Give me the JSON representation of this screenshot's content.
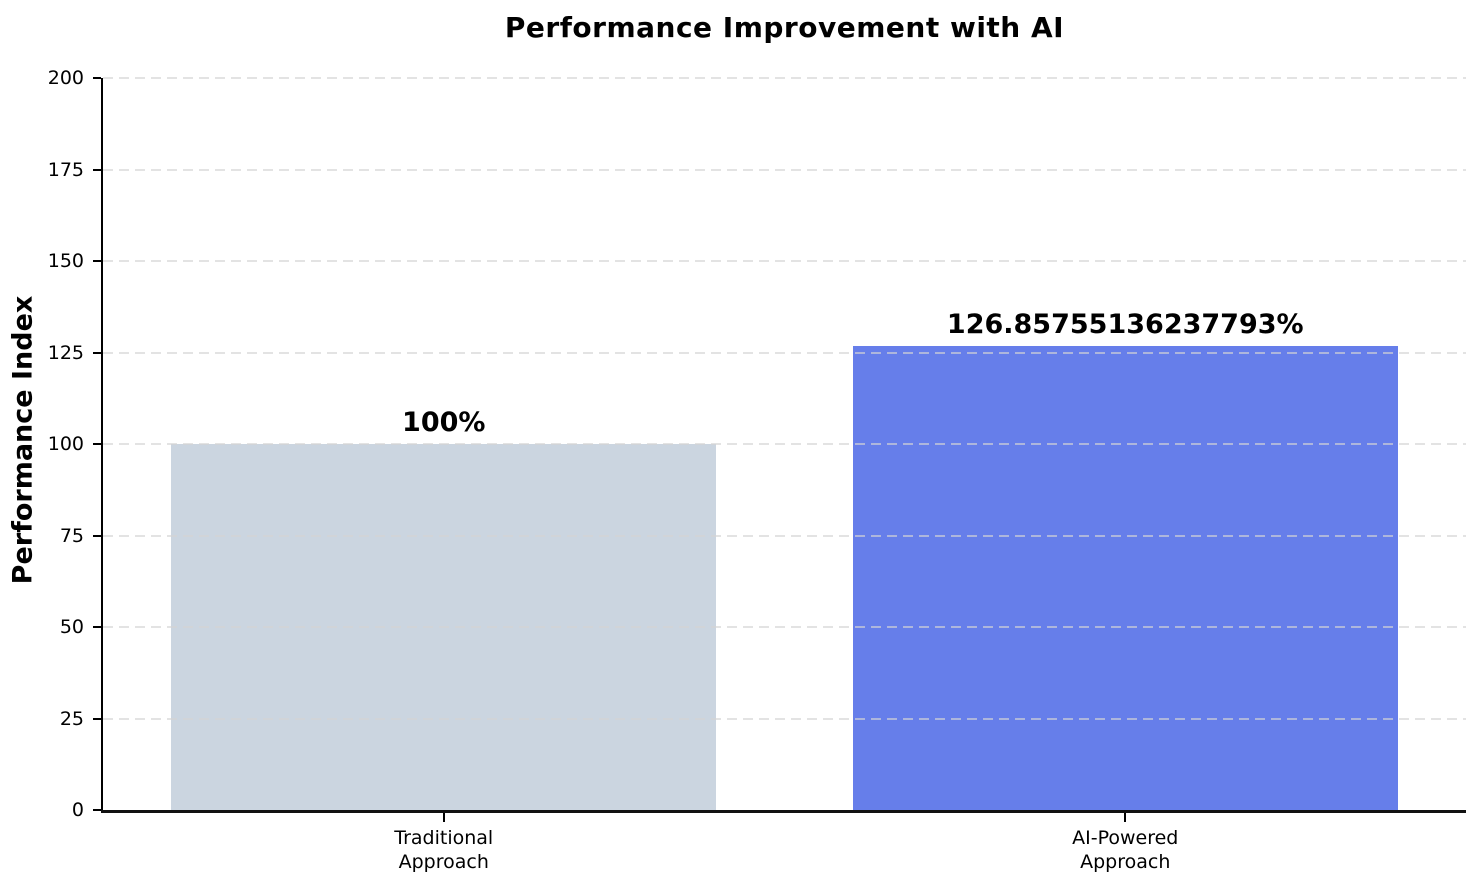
{
  "chart_data": {
    "type": "bar",
    "title": "Performance Improvement with AI",
    "xlabel": "",
    "ylabel": "Performance Index",
    "categories": [
      "Traditional\nApproach",
      "AI-Powered\nApproach"
    ],
    "values": [
      100,
      126.85755136237793
    ],
    "bar_labels": [
      "100%",
      "126.85755136237793%"
    ],
    "bar_colors": [
      "#cbd5e0",
      "#667eea"
    ],
    "ylim": [
      0,
      200
    ],
    "yticks": [
      0,
      25,
      50,
      75,
      100,
      125,
      150,
      175,
      200
    ],
    "grid": "horizontal-dashed",
    "grid_color": "#e2e2e2",
    "legend_position": "none",
    "background_color": "#ffffff",
    "spine_color": "#000000"
  }
}
